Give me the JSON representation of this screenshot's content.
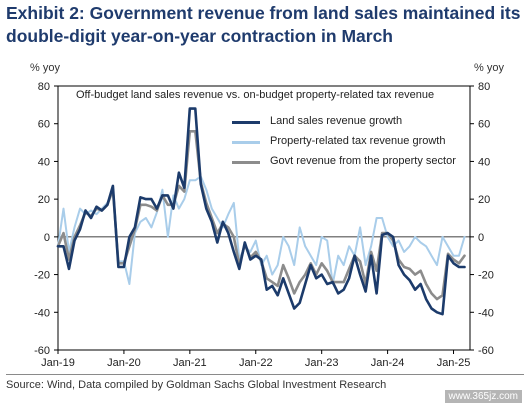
{
  "title_line1": "Exhibit 2: Government revenue from land sales maintained its",
  "title_line2": "double-digit year-on-year contraction in March",
  "source": "Source: Wind, Data compiled by Goldman Sachs Global Investment Research",
  "watermark": "www.365jz.com",
  "colors": {
    "title": "#1f3b6d"
  },
  "chart_data": {
    "type": "line",
    "subtitle": "Off-budget land sales revenue vs. on-budget property-related tax revenue",
    "ylabel_left": "% yoy",
    "ylabel_right": "% yoy",
    "ylim": [
      -60,
      80
    ],
    "yticks": [
      80,
      60,
      40,
      20,
      0,
      -20,
      -40,
      -60
    ],
    "xlim": [
      "2019-01",
      "2025-04"
    ],
    "xticks": [
      "Jan-19",
      "Jan-20",
      "Jan-21",
      "Jan-22",
      "Jan-23",
      "Jan-24",
      "Jan-25"
    ],
    "grid": false,
    "legend_position": "top-right",
    "series": [
      {
        "name": "Land sales revenue growth",
        "color": "#1c3b6b",
        "x": [
          "2019-01",
          "2019-02",
          "2019-03",
          "2019-04",
          "2019-05",
          "2019-06",
          "2019-07",
          "2019-08",
          "2019-09",
          "2019-10",
          "2019-11",
          "2019-12",
          "2020-01",
          "2020-02",
          "2020-03",
          "2020-04",
          "2020-05",
          "2020-06",
          "2020-07",
          "2020-08",
          "2020-09",
          "2020-10",
          "2020-11",
          "2020-12",
          "2021-01",
          "2021-02",
          "2021-03",
          "2021-04",
          "2021-05",
          "2021-06",
          "2021-07",
          "2021-08",
          "2021-09",
          "2021-10",
          "2021-11",
          "2021-12",
          "2022-01",
          "2022-02",
          "2022-03",
          "2022-04",
          "2022-05",
          "2022-06",
          "2022-07",
          "2022-08",
          "2022-09",
          "2022-10",
          "2022-11",
          "2022-12",
          "2023-01",
          "2023-02",
          "2023-03",
          "2023-04",
          "2023-05",
          "2023-06",
          "2023-07",
          "2023-08",
          "2023-09",
          "2023-10",
          "2023-11",
          "2023-12",
          "2024-01",
          "2024-02",
          "2024-03",
          "2024-04",
          "2024-05",
          "2024-06",
          "2024-07",
          "2024-08",
          "2024-09",
          "2024-10",
          "2024-11",
          "2024-12",
          "2025-01",
          "2025-02",
          "2025-03"
        ],
        "values": [
          -5,
          -5,
          -17,
          -2,
          4,
          14,
          10,
          16,
          14,
          17,
          27,
          -16,
          -16,
          0,
          5,
          21,
          20,
          20,
          15,
          22,
          22,
          15,
          34,
          26,
          68,
          68,
          28,
          15,
          8,
          -3,
          8,
          2,
          -8,
          -17,
          -3,
          -12,
          -10,
          -12,
          -28,
          -26,
          -31,
          -22,
          -30,
          -38,
          -35,
          -25,
          -15,
          -22,
          -20,
          -25,
          -24,
          -30,
          -28,
          -22,
          -10,
          -20,
          -29,
          -10,
          -30,
          1,
          2,
          0,
          -15,
          -20,
          -23,
          -28,
          -25,
          -33,
          -38,
          -40,
          -41,
          -10,
          -14,
          -16,
          -16
        ]
      },
      {
        "name": "Property-related tax revenue growth",
        "color": "#a9cdea",
        "x": [
          "2019-01",
          "2019-02",
          "2019-03",
          "2019-04",
          "2019-05",
          "2019-06",
          "2019-07",
          "2019-08",
          "2019-09",
          "2019-10",
          "2019-11",
          "2019-12",
          "2020-01",
          "2020-02",
          "2020-03",
          "2020-04",
          "2020-05",
          "2020-06",
          "2020-07",
          "2020-08",
          "2020-09",
          "2020-10",
          "2020-11",
          "2020-12",
          "2021-01",
          "2021-02",
          "2021-03",
          "2021-04",
          "2021-05",
          "2021-06",
          "2021-07",
          "2021-08",
          "2021-09",
          "2021-10",
          "2021-11",
          "2021-12",
          "2022-01",
          "2022-02",
          "2022-03",
          "2022-04",
          "2022-05",
          "2022-06",
          "2022-07",
          "2022-08",
          "2022-09",
          "2022-10",
          "2022-11",
          "2022-12",
          "2023-01",
          "2023-02",
          "2023-03",
          "2023-04",
          "2023-05",
          "2023-06",
          "2023-07",
          "2023-08",
          "2023-09",
          "2023-10",
          "2023-11",
          "2023-12",
          "2024-01",
          "2024-02",
          "2024-03",
          "2024-04",
          "2024-05",
          "2024-06",
          "2024-07",
          "2024-08",
          "2024-09",
          "2024-10",
          "2024-11",
          "2024-12",
          "2025-01",
          "2025-02",
          "2025-03"
        ],
        "values": [
          -5,
          15,
          -8,
          5,
          15,
          12,
          14,
          12,
          15,
          18,
          25,
          -13,
          -13,
          -25,
          2,
          8,
          10,
          5,
          13,
          25,
          0,
          22,
          15,
          20,
          30,
          30,
          32,
          25,
          15,
          10,
          5,
          12,
          18,
          -12,
          -5,
          -8,
          -2,
          -15,
          -10,
          -20,
          -15,
          0,
          -5,
          -15,
          5,
          -5,
          -10,
          -15,
          0,
          -2,
          -25,
          -10,
          -15,
          -5,
          -10,
          5,
          -15,
          -5,
          10,
          10,
          0,
          -5,
          -2,
          -8,
          -5,
          0,
          -3,
          -5,
          -10,
          -15,
          0,
          -5,
          -10,
          -10,
          0
        ]
      },
      {
        "name": "Govt revenue from the property sector",
        "color": "#8c8c8c",
        "x": [
          "2019-01",
          "2019-02",
          "2019-03",
          "2019-04",
          "2019-05",
          "2019-06",
          "2019-07",
          "2019-08",
          "2019-09",
          "2019-10",
          "2019-11",
          "2019-12",
          "2020-01",
          "2020-02",
          "2020-03",
          "2020-04",
          "2020-05",
          "2020-06",
          "2020-07",
          "2020-08",
          "2020-09",
          "2020-10",
          "2020-11",
          "2020-12",
          "2021-01",
          "2021-02",
          "2021-03",
          "2021-04",
          "2021-05",
          "2021-06",
          "2021-07",
          "2021-08",
          "2021-09",
          "2021-10",
          "2021-11",
          "2021-12",
          "2022-01",
          "2022-02",
          "2022-03",
          "2022-04",
          "2022-05",
          "2022-06",
          "2022-07",
          "2022-08",
          "2022-09",
          "2022-10",
          "2022-11",
          "2022-12",
          "2023-01",
          "2023-02",
          "2023-03",
          "2023-04",
          "2023-05",
          "2023-06",
          "2023-07",
          "2023-08",
          "2023-09",
          "2023-10",
          "2023-11",
          "2023-12",
          "2024-01",
          "2024-02",
          "2024-03",
          "2024-04",
          "2024-05",
          "2024-06",
          "2024-07",
          "2024-08",
          "2024-09",
          "2024-10",
          "2024-11",
          "2024-12",
          "2025-01",
          "2025-02",
          "2025-03"
        ],
        "values": [
          -5,
          2,
          -12,
          0,
          6,
          13,
          11,
          15,
          14,
          17,
          25,
          -14,
          -14,
          -5,
          4,
          17,
          17,
          16,
          14,
          22,
          17,
          17,
          27,
          24,
          56,
          56,
          29,
          18,
          10,
          2,
          7,
          5,
          0,
          -15,
          -4,
          -11,
          -8,
          -13,
          -22,
          -24,
          -26,
          -15,
          -22,
          -30,
          -24,
          -20,
          -14,
          -20,
          -14,
          -18,
          -24,
          -24,
          -24,
          -17,
          -10,
          -13,
          -25,
          -8,
          -18,
          2,
          2,
          -2,
          -12,
          -16,
          -17,
          -20,
          -18,
          -25,
          -30,
          -33,
          -31,
          -9,
          -12,
          -14,
          -10
        ]
      }
    ]
  }
}
